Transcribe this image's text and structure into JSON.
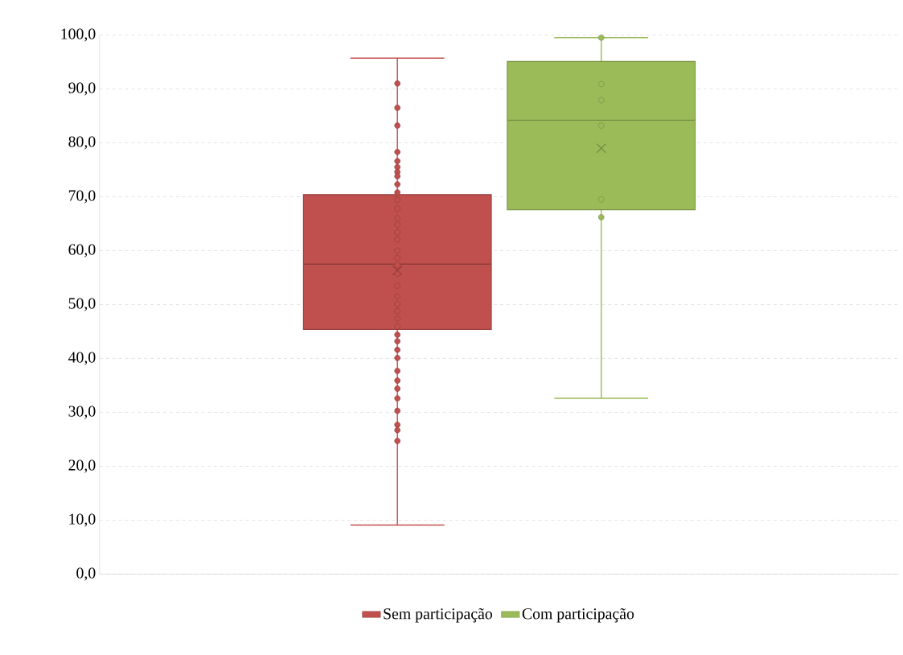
{
  "chart_data": {
    "type": "box",
    "categories": [
      null
    ],
    "series": [
      {
        "name": "Sem participação",
        "color": "#c0504d",
        "boxes": [
          {
            "low": 9.1,
            "q1": 45.4,
            "median": 57.5,
            "q3": 70.4,
            "high": 95.7,
            "mean": 56.3
          }
        ]
      },
      {
        "name": "Com participação",
        "color": "#9bbb59",
        "boxes": [
          {
            "low": 32.6,
            "q1": 67.6,
            "median": 84.2,
            "q3": 95.1,
            "high": 99.5,
            "mean": 79.0
          }
        ]
      },
      {
        "type": "scatter",
        "color": "#c0504d",
        "x": [
          null,
          null,
          null,
          null,
          null,
          null,
          null,
          null,
          null,
          null,
          null,
          null,
          null,
          null,
          null,
          null,
          null,
          null,
          null,
          null,
          null,
          null,
          null,
          null,
          null,
          null,
          null,
          null,
          null,
          null,
          null,
          null,
          null,
          null,
          null,
          null,
          null,
          null
        ],
        "values": [
          91.0,
          86.5,
          83.2,
          78.3,
          76.6,
          75.5,
          74.6,
          73.8,
          72.3,
          70.8,
          69.4,
          67.8,
          66.0,
          64.8,
          63.4,
          62.1,
          60.0,
          58.6,
          57.3,
          55.7,
          53.5,
          51.5,
          50.1,
          48.8,
          47.4,
          45.9,
          44.4,
          43.2,
          41.6,
          40.1,
          37.7,
          35.9,
          34.4,
          32.6,
          30.3,
          27.7,
          26.7,
          24.7
        ]
      },
      {
        "type": "scatter",
        "color": "#9bbb59",
        "x": [
          null,
          null,
          null,
          null,
          null,
          null
        ],
        "values": [
          99.5,
          90.9,
          87.9,
          83.2,
          69.5,
          66.2
        ]
      }
    ],
    "ylim": [
      0,
      100
    ],
    "yticks": [
      {
        "value": 0,
        "label": "0,0"
      },
      {
        "value": 10,
        "label": "10,0"
      },
      {
        "value": 20,
        "label": "20,0"
      },
      {
        "value": 30,
        "label": "30,0"
      },
      {
        "value": 40,
        "label": "40,0"
      },
      {
        "value": 50,
        "label": "50,0"
      },
      {
        "value": 60,
        "label": "60,0"
      },
      {
        "value": 70,
        "label": "70,0"
      },
      {
        "value": 80,
        "label": "80,0"
      },
      {
        "value": 90,
        "label": "90,0"
      },
      {
        "value": 100,
        "label": "100,0"
      }
    ],
    "grid": "y",
    "legend": "bottom"
  }
}
